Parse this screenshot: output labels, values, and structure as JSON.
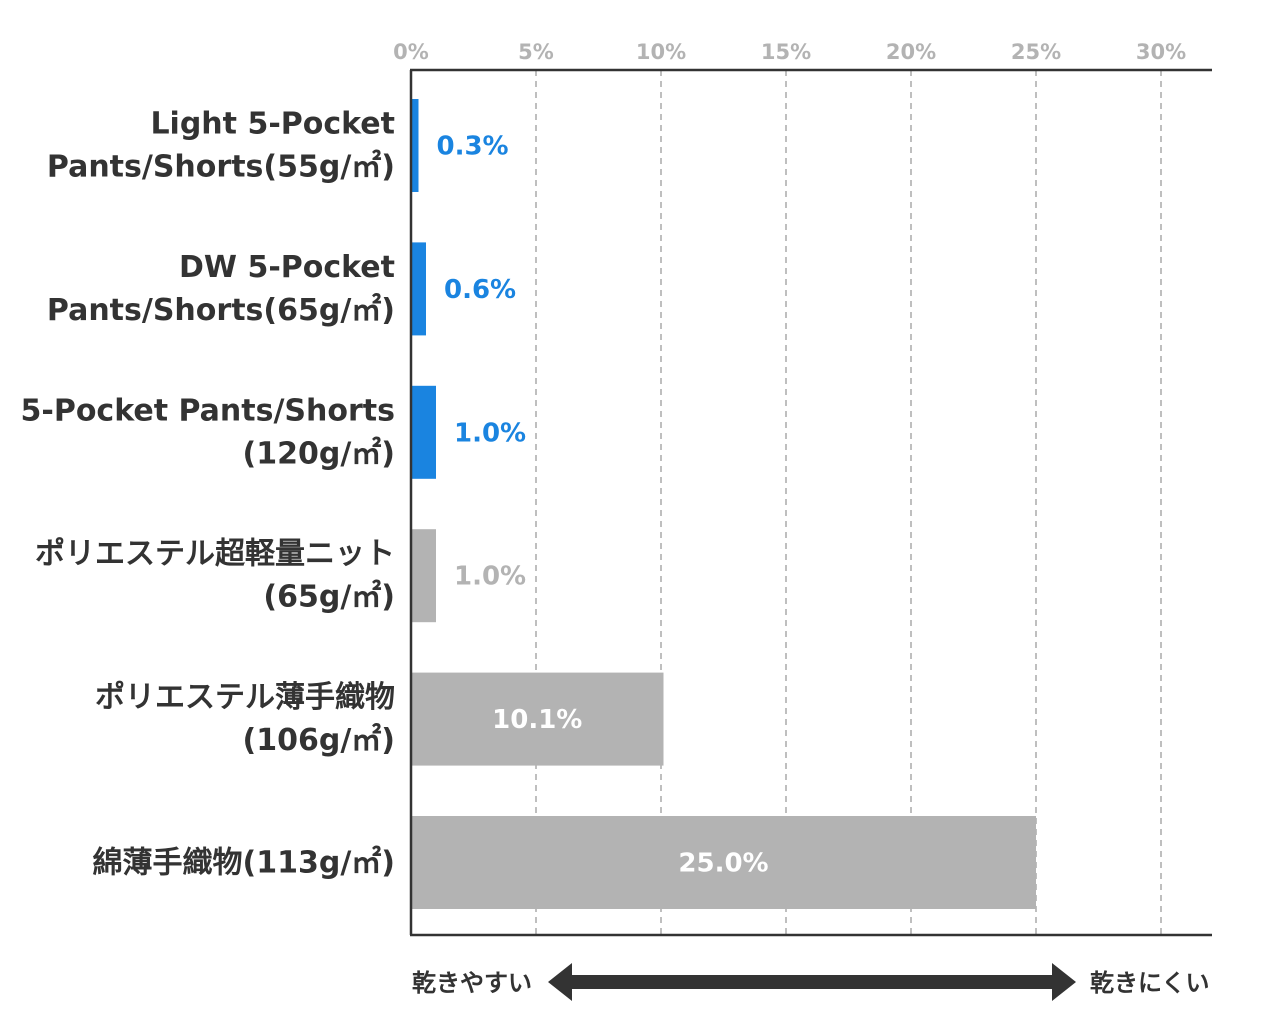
{
  "chart_data": {
    "type": "bar",
    "orientation": "horizontal",
    "categories": [
      [
        "Light 5-Pocket",
        "Pants/Shorts(55g/㎡)"
      ],
      [
        "DW 5-Pocket",
        "Pants/Shorts(65g/㎡)"
      ],
      [
        "5-Pocket Pants/Shorts",
        "(120g/㎡)"
      ],
      [
        "ポリエステル超軽量ニット",
        "(65g/㎡)"
      ],
      [
        "ポリエステル薄手織物",
        "(106g/㎡)"
      ],
      [
        "綿薄手織物(113g/㎡)"
      ]
    ],
    "values": [
      0.3,
      0.6,
      1.0,
      1.0,
      10.1,
      25.0
    ],
    "value_labels": [
      "0.3%",
      "0.6%",
      "1.0%",
      "1.0%",
      "10.1%",
      "25.0%"
    ],
    "bar_colors": [
      "#1a84e0",
      "#1a84e0",
      "#1a84e0",
      "#b3b3b3",
      "#b3b3b3",
      "#b3b3b3"
    ],
    "label_colors": [
      "#1a84e0",
      "#1a84e0",
      "#1a84e0",
      "#b3b3b3",
      "#ffffff",
      "#ffffff"
    ],
    "label_inside": [
      false,
      false,
      false,
      false,
      true,
      true
    ],
    "xticks": [
      0,
      5,
      10,
      15,
      20,
      25,
      30
    ],
    "xtick_labels": [
      "0%",
      "5%",
      "10%",
      "15%",
      "20%",
      "25%",
      "30%"
    ],
    "xlim": [
      0,
      32
    ],
    "grid": true,
    "title": "",
    "xlabel": "",
    "ylabel": ""
  },
  "arrow": {
    "left_label": "乾きやすい",
    "right_label": "乾きにくい",
    "color": "#333333"
  },
  "colors": {
    "accent": "#1a84e0",
    "gray": "#b3b3b3",
    "axis": "#333333",
    "grid": "#bfbfbf"
  }
}
